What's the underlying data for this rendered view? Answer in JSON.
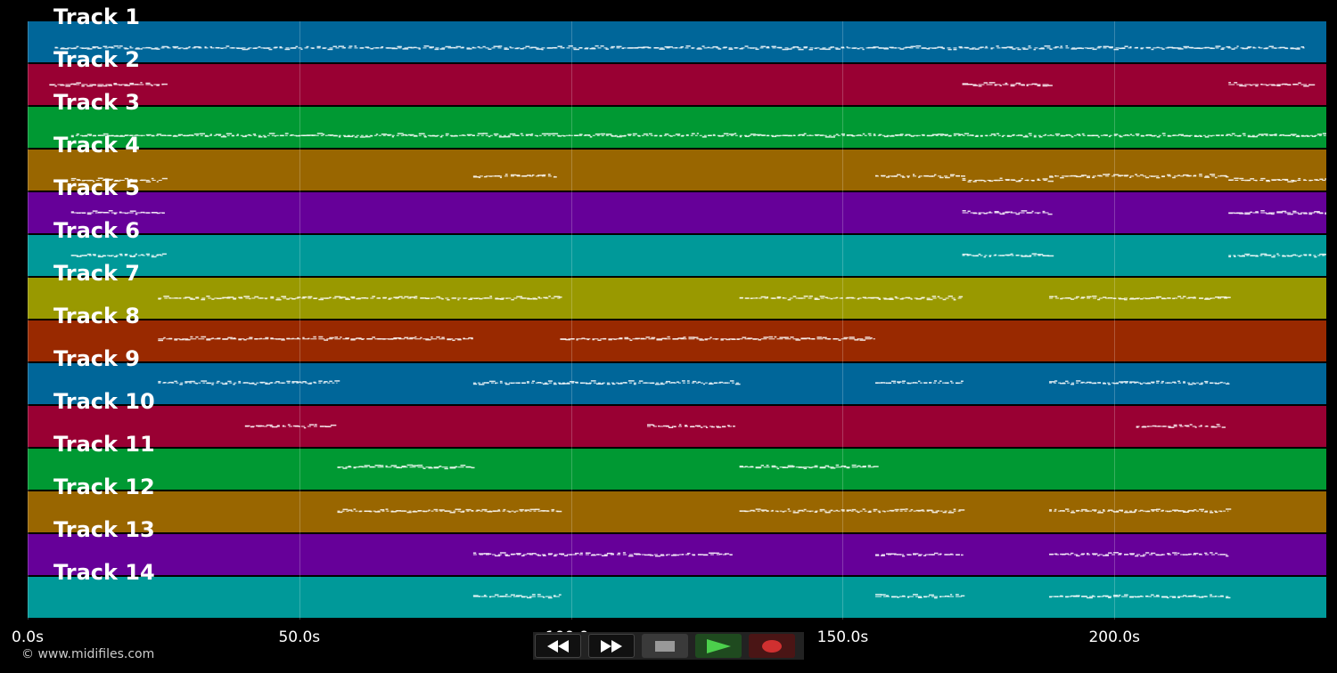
{
  "tracks": [
    {
      "label": "Track 1",
      "color": "#006699",
      "notes": [
        [
          5,
          235,
          0.65
        ]
      ]
    },
    {
      "label": "Track 2",
      "color": "#990033",
      "notes": [
        [
          4,
          25,
          0.5
        ],
        [
          172,
          188,
          0.5
        ],
        [
          221,
          236,
          0.5
        ]
      ]
    },
    {
      "label": "Track 3",
      "color": "#009933",
      "notes": [
        [
          8,
          239,
          0.7
        ]
      ]
    },
    {
      "label": "Track 4",
      "color": "#996600",
      "notes": [
        [
          8,
          25,
          0.75
        ],
        [
          82,
          97,
          0.65
        ],
        [
          156,
          172,
          0.65
        ],
        [
          172,
          188,
          0.75
        ],
        [
          188,
          221,
          0.65
        ],
        [
          221,
          239,
          0.75
        ]
      ]
    },
    {
      "label": "Track 5",
      "color": "#660099",
      "notes": [
        [
          8,
          25,
          0.5
        ],
        [
          172,
          188,
          0.5
        ],
        [
          221,
          239,
          0.5
        ]
      ]
    },
    {
      "label": "Track 6",
      "color": "#009999",
      "notes": [
        [
          8,
          25,
          0.5
        ],
        [
          172,
          188,
          0.5
        ],
        [
          221,
          239,
          0.5
        ]
      ]
    },
    {
      "label": "Track 7",
      "color": "#999900",
      "notes": [
        [
          24,
          98,
          0.5
        ],
        [
          131,
          172,
          0.5
        ],
        [
          188,
          221,
          0.5
        ]
      ]
    },
    {
      "label": "Track 8",
      "color": "#992900",
      "notes": [
        [
          24,
          82,
          0.45
        ],
        [
          98,
          156,
          0.45
        ]
      ]
    },
    {
      "label": "Track 9",
      "color": "#006699",
      "notes": [
        [
          24,
          57,
          0.48
        ],
        [
          82,
          131,
          0.48
        ],
        [
          156,
          172,
          0.48
        ],
        [
          188,
          221,
          0.48
        ]
      ]
    },
    {
      "label": "Track 10",
      "color": "#990033",
      "notes": [
        [
          40,
          56,
          0.5
        ],
        [
          114,
          130,
          0.5
        ],
        [
          204,
          220,
          0.5
        ]
      ]
    },
    {
      "label": "Track 11",
      "color": "#009933",
      "notes": [
        [
          57,
          82,
          0.45
        ],
        [
          131,
          156,
          0.45
        ]
      ]
    },
    {
      "label": "Track 12",
      "color": "#996600",
      "notes": [
        [
          57,
          98,
          0.48
        ],
        [
          131,
          172,
          0.48
        ],
        [
          188,
          221,
          0.48
        ]
      ]
    },
    {
      "label": "Track 13",
      "color": "#660099",
      "notes": [
        [
          82,
          130,
          0.5
        ],
        [
          156,
          172,
          0.5
        ],
        [
          188,
          221,
          0.5
        ]
      ]
    },
    {
      "label": "Track 14",
      "color": "#009999",
      "notes": [
        [
          82,
          98,
          0.48
        ],
        [
          156,
          172,
          0.48
        ],
        [
          188,
          221,
          0.48
        ]
      ]
    }
  ],
  "timeline": {
    "max_seconds": 239,
    "ticks": [
      {
        "value": 0,
        "label": "0.0s"
      },
      {
        "value": 50,
        "label": "50.0s"
      },
      {
        "value": 100,
        "label": "100.0s"
      },
      {
        "value": 150,
        "label": "150.0s"
      },
      {
        "value": 200,
        "label": "200.0s"
      }
    ]
  },
  "copyright": "© www.midifiles.com",
  "transport": {
    "rewind_icon": "rewind-icon",
    "fast_forward_icon": "fast-forward-icon",
    "stop_icon": "stop-icon",
    "play_icon": "play-icon",
    "record_icon": "record-icon"
  }
}
